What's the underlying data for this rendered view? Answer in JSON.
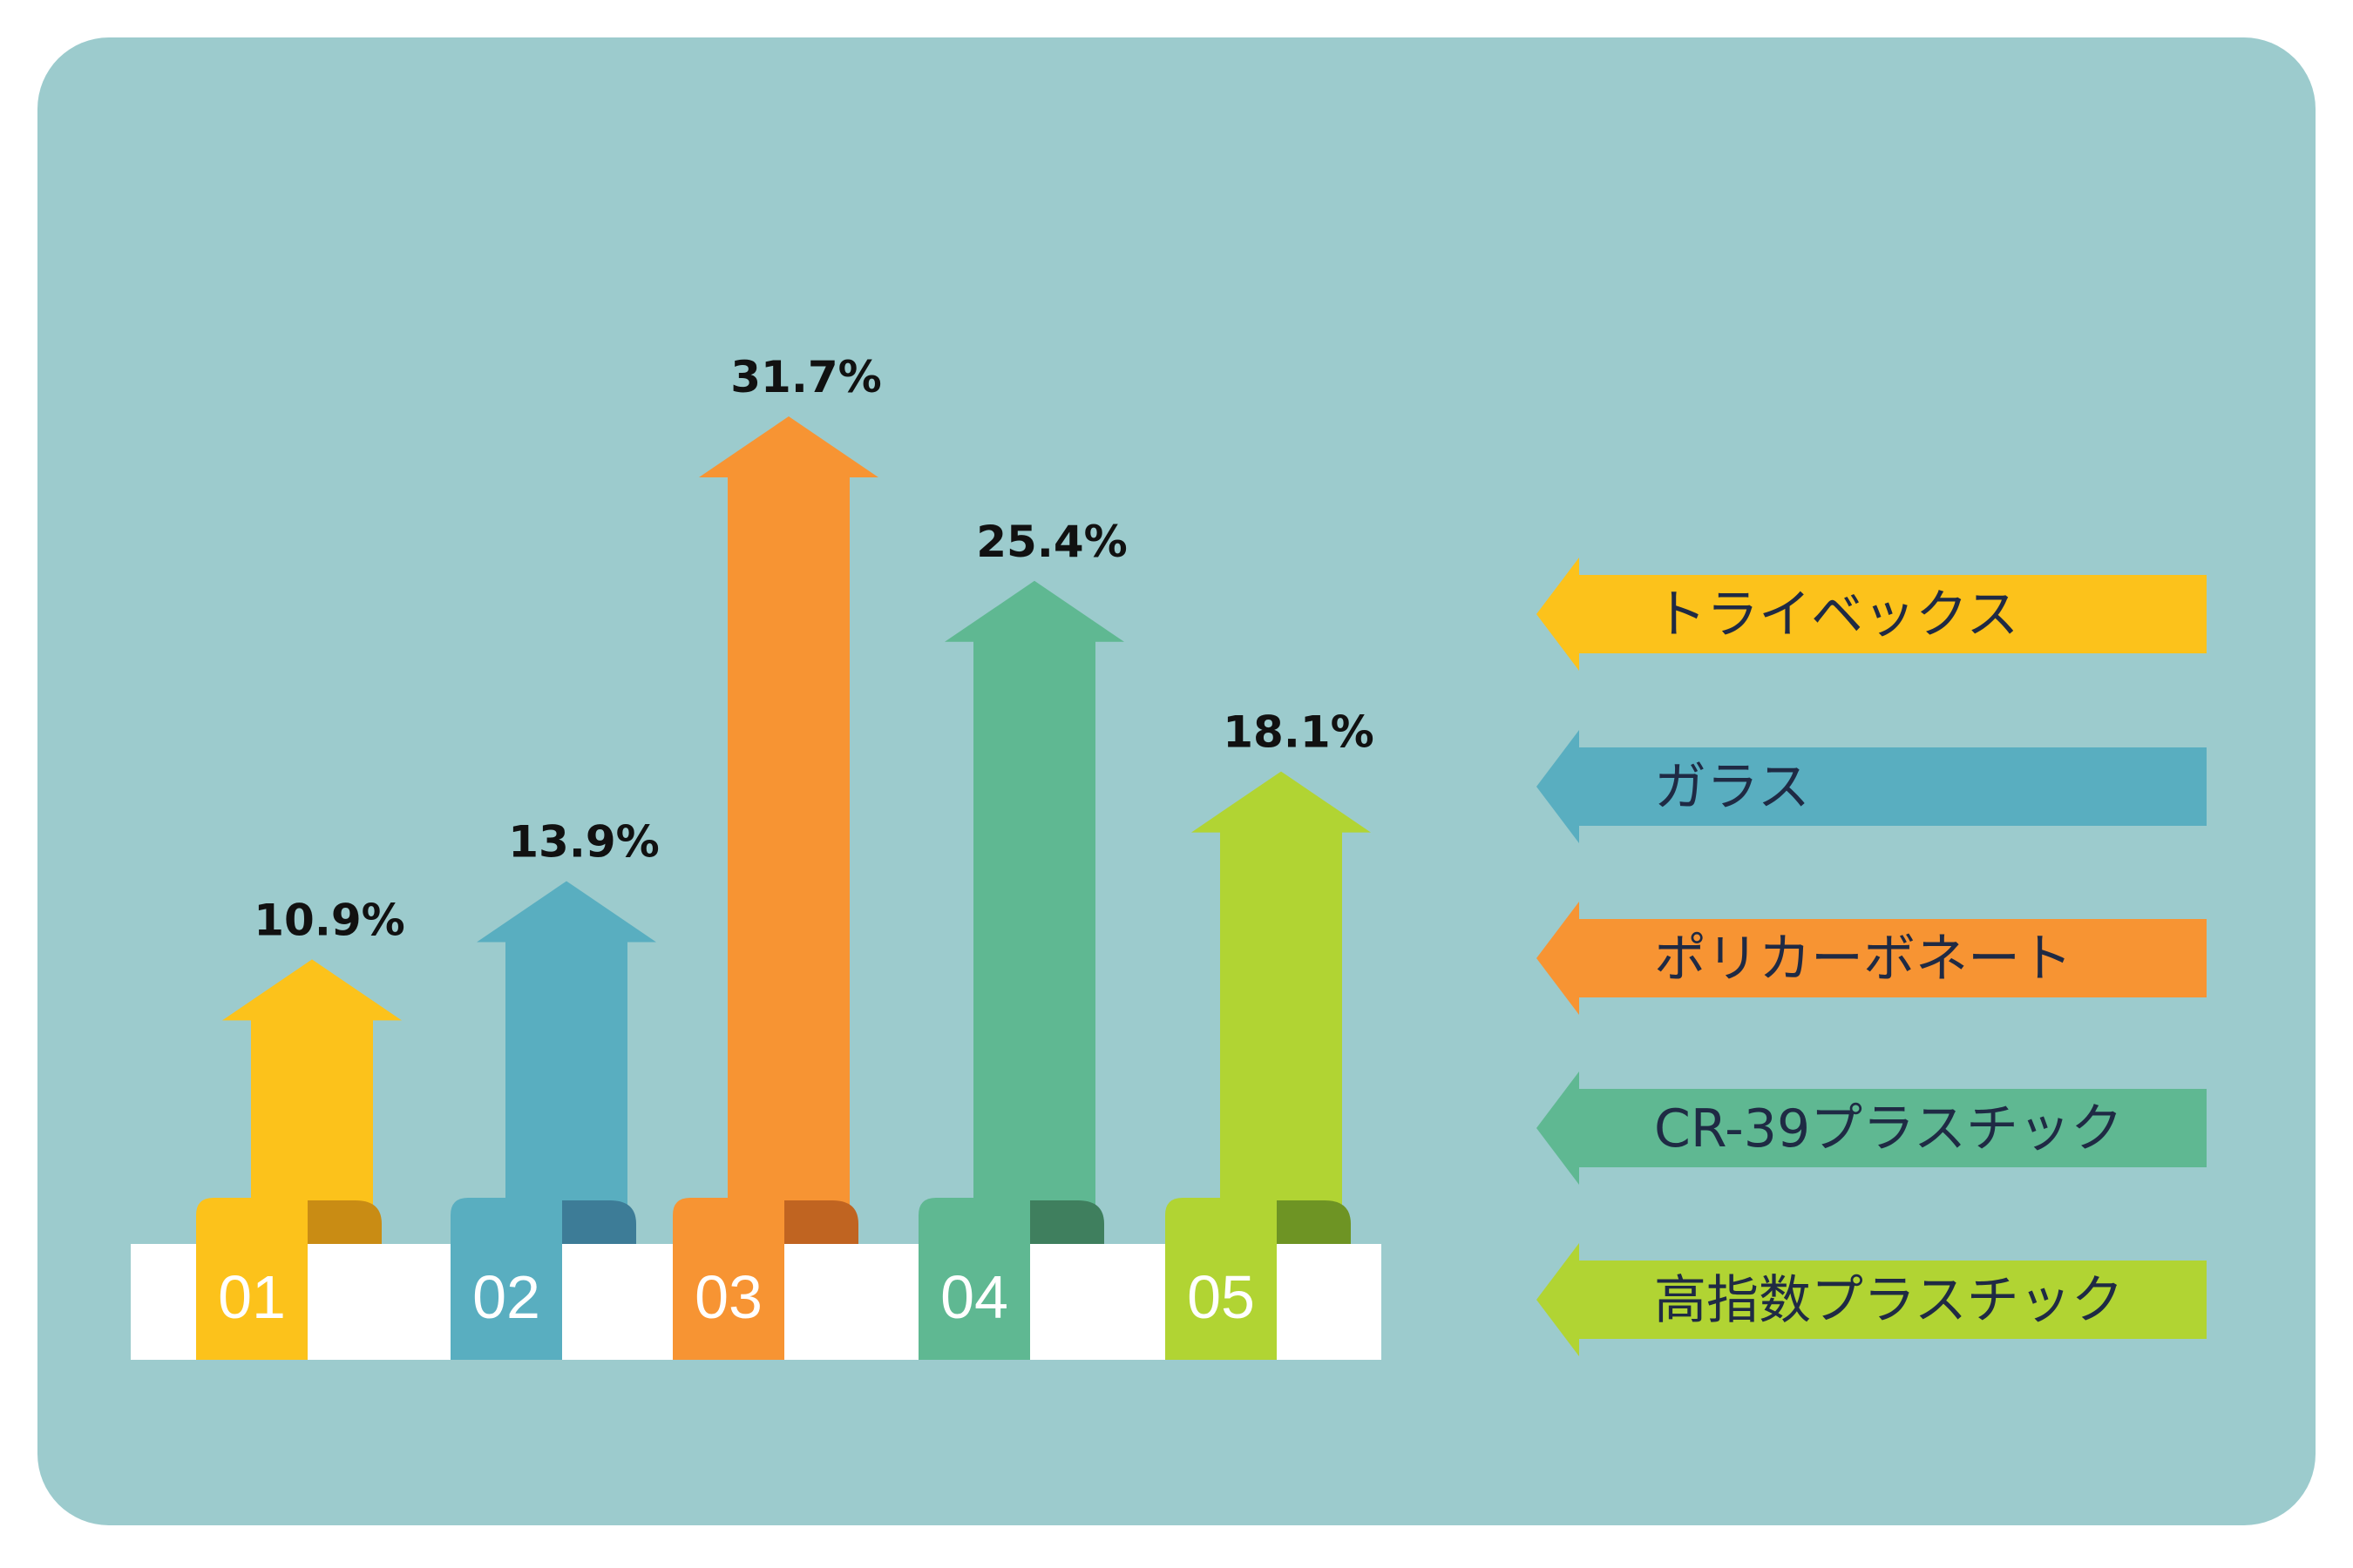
{
  "chart_data": {
    "type": "bar",
    "categories": [
      "01",
      "02",
      "03",
      "04",
      "05"
    ],
    "values": [
      10.9,
      13.9,
      31.7,
      25.4,
      18.1
    ],
    "value_labels": [
      "10.9%",
      "13.9%",
      "31.7%",
      "25.4%",
      "18.1%"
    ],
    "series_names": [
      "トライベックス",
      "ガラス",
      "ポリカーボネート",
      "CR-39プラスチック",
      "高指数プラスチック"
    ],
    "colors": [
      "#fcc21b",
      "#59aec0",
      "#f79433",
      "#5fb892",
      "#b1d433"
    ],
    "dark_colors": [
      "#c98c14",
      "#3d7c97",
      "#c06421",
      "#3f7f5e",
      "#6e9424"
    ],
    "legend_position": "right",
    "ylim": [
      0,
      31.7
    ],
    "grid": false
  }
}
